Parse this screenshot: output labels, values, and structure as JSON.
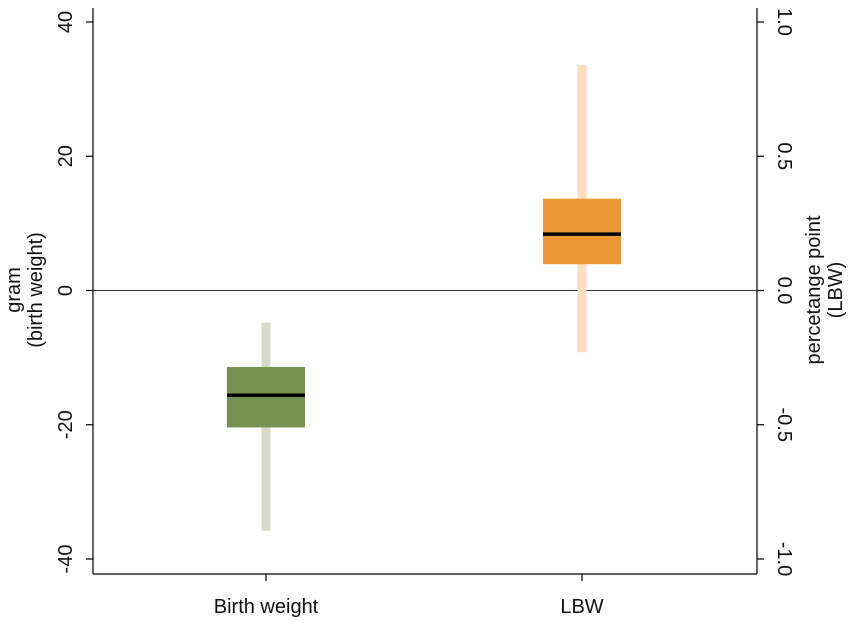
{
  "chart_data": {
    "type": "boxplot",
    "categories": [
      "Birth weight",
      "LBW"
    ],
    "left_axis": {
      "title_lines": [
        "gram",
        "(birth weight)"
      ],
      "ticks": [
        40,
        20,
        0,
        -20,
        -40
      ],
      "tick_labels": [
        "40",
        "20",
        "0",
        "-20",
        "-40"
      ],
      "ylim": [
        -40,
        40
      ]
    },
    "right_axis": {
      "title_lines": [
        "percetange point",
        "(LBW)"
      ],
      "ticks": [
        1.0,
        0.5,
        0.0,
        -0.5,
        -1.0
      ],
      "tick_labels": [
        "1.0",
        "0.5",
        "0.0",
        "-0.5",
        "-1.0"
      ],
      "ylim": [
        -1.0,
        1.0
      ]
    },
    "zero_line": true,
    "series": [
      {
        "category": "Birth weight",
        "axis": "left",
        "whisker_low": -35.8,
        "box_low": -20.4,
        "median": -15.6,
        "box_high": -11.4,
        "whisker_high": -4.8,
        "box_color": "#76904f",
        "whisker_color": "#d4dcc6"
      },
      {
        "category": "LBW",
        "axis": "right",
        "whisker_low": -0.23,
        "box_low": 0.098,
        "median": 0.21,
        "box_high": 0.342,
        "whisker_high": 0.84,
        "box_color": "#ec9734",
        "whisker_color": "#f9dfbd"
      }
    ],
    "median_color": "#000000",
    "grid": false
  }
}
